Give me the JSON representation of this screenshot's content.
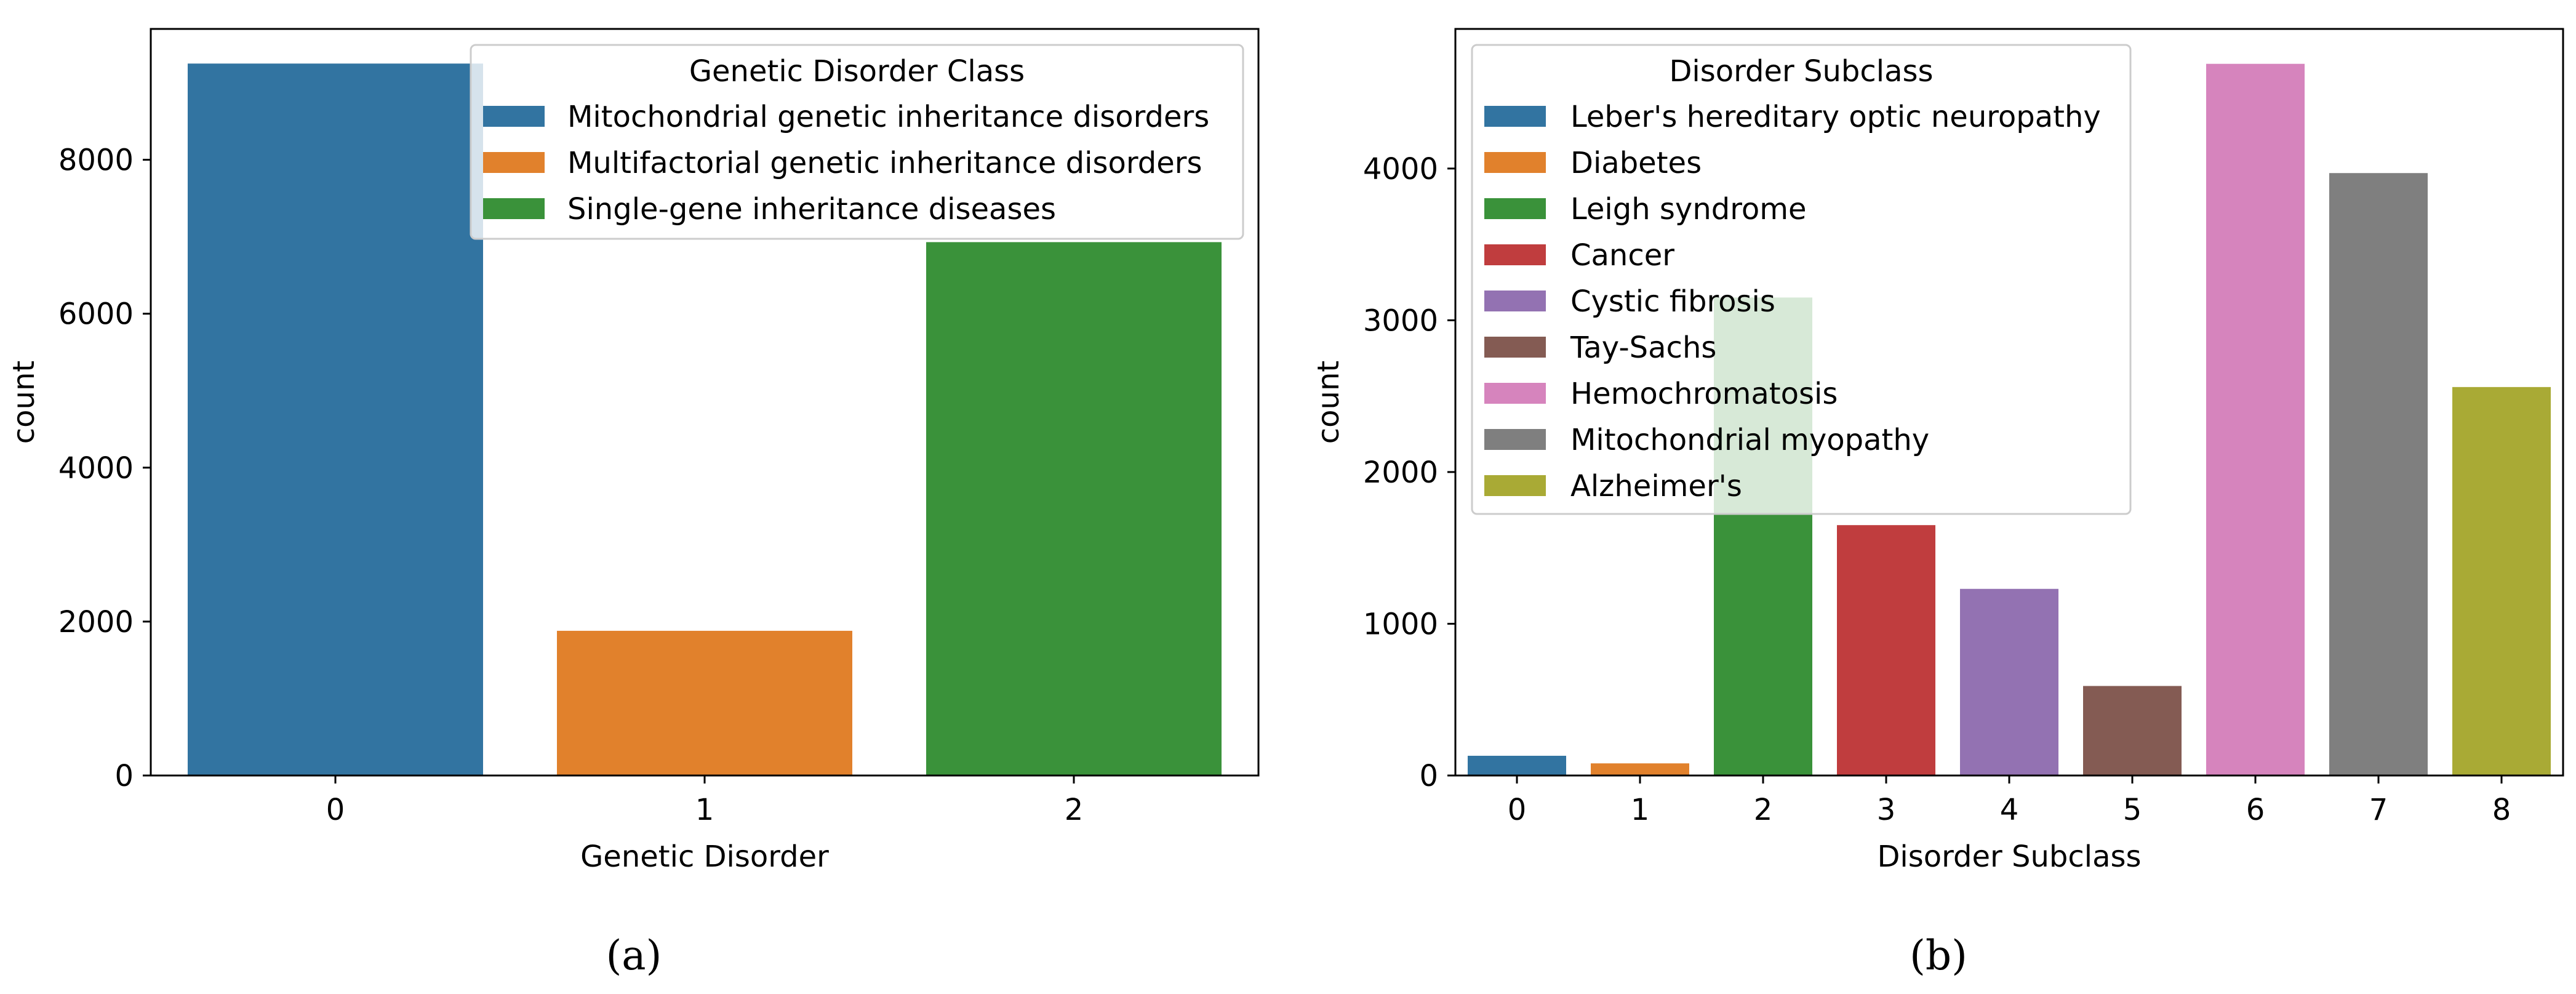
{
  "chart_data": [
    {
      "type": "bar",
      "title": "",
      "xlabel": "Genetic Disorder",
      "ylabel": "count",
      "categories": [
        "0",
        "1",
        "2"
      ],
      "values": [
        9250,
        1880,
        6930
      ],
      "colors": [
        "#3274a1",
        "#e1812c",
        "#3a923a"
      ],
      "ylim": [
        0,
        9700
      ],
      "yticks": [
        0,
        2000,
        4000,
        6000,
        8000
      ],
      "ytick_labels": [
        "0",
        "2000",
        "4000",
        "6000",
        "8000"
      ],
      "grid": false,
      "legend": {
        "title": "Genetic Disorder Class",
        "placement": "top-right",
        "entries": [
          "Mitochondrial genetic inheritance disorders",
          "Multifactorial genetic inheritance disorders",
          "Single-gene inheritance diseases"
        ],
        "colors": [
          "#3274a1",
          "#e1812c",
          "#3a923a"
        ]
      },
      "caption": "(a)"
    },
    {
      "type": "bar",
      "title": "",
      "xlabel": "Disorder Subclass",
      "ylabel": "count",
      "categories": [
        "0",
        "1",
        "2",
        "3",
        "4",
        "5",
        "6",
        "7",
        "8"
      ],
      "values": [
        130,
        80,
        3150,
        1650,
        1230,
        590,
        4690,
        3970,
        2560
      ],
      "colors": [
        "#3274a1",
        "#e1812c",
        "#3a923a",
        "#c03d3e",
        "#9372b2",
        "#845b53",
        "#d684bd",
        "#7f7f7f",
        "#a9aa35"
      ],
      "ylim": [
        0,
        4920
      ],
      "yticks": [
        0,
        1000,
        2000,
        3000,
        4000
      ],
      "ytick_labels": [
        "0",
        "1000",
        "2000",
        "3000",
        "4000"
      ],
      "grid": false,
      "legend": {
        "title": "Disorder Subclass",
        "placement": "top-left",
        "entries": [
          "Leber's hereditary optic neuropathy",
          "Diabetes",
          "Leigh syndrome",
          "Cancer",
          "Cystic fibrosis",
          "Tay-Sachs",
          "Hemochromatosis",
          "Mitochondrial myopathy",
          "Alzheimer's"
        ],
        "colors": [
          "#3274a1",
          "#e1812c",
          "#3a923a",
          "#c03d3e",
          "#9372b2",
          "#845b53",
          "#d684bd",
          "#7f7f7f",
          "#a9aa35"
        ]
      },
      "caption": "(b)"
    }
  ]
}
